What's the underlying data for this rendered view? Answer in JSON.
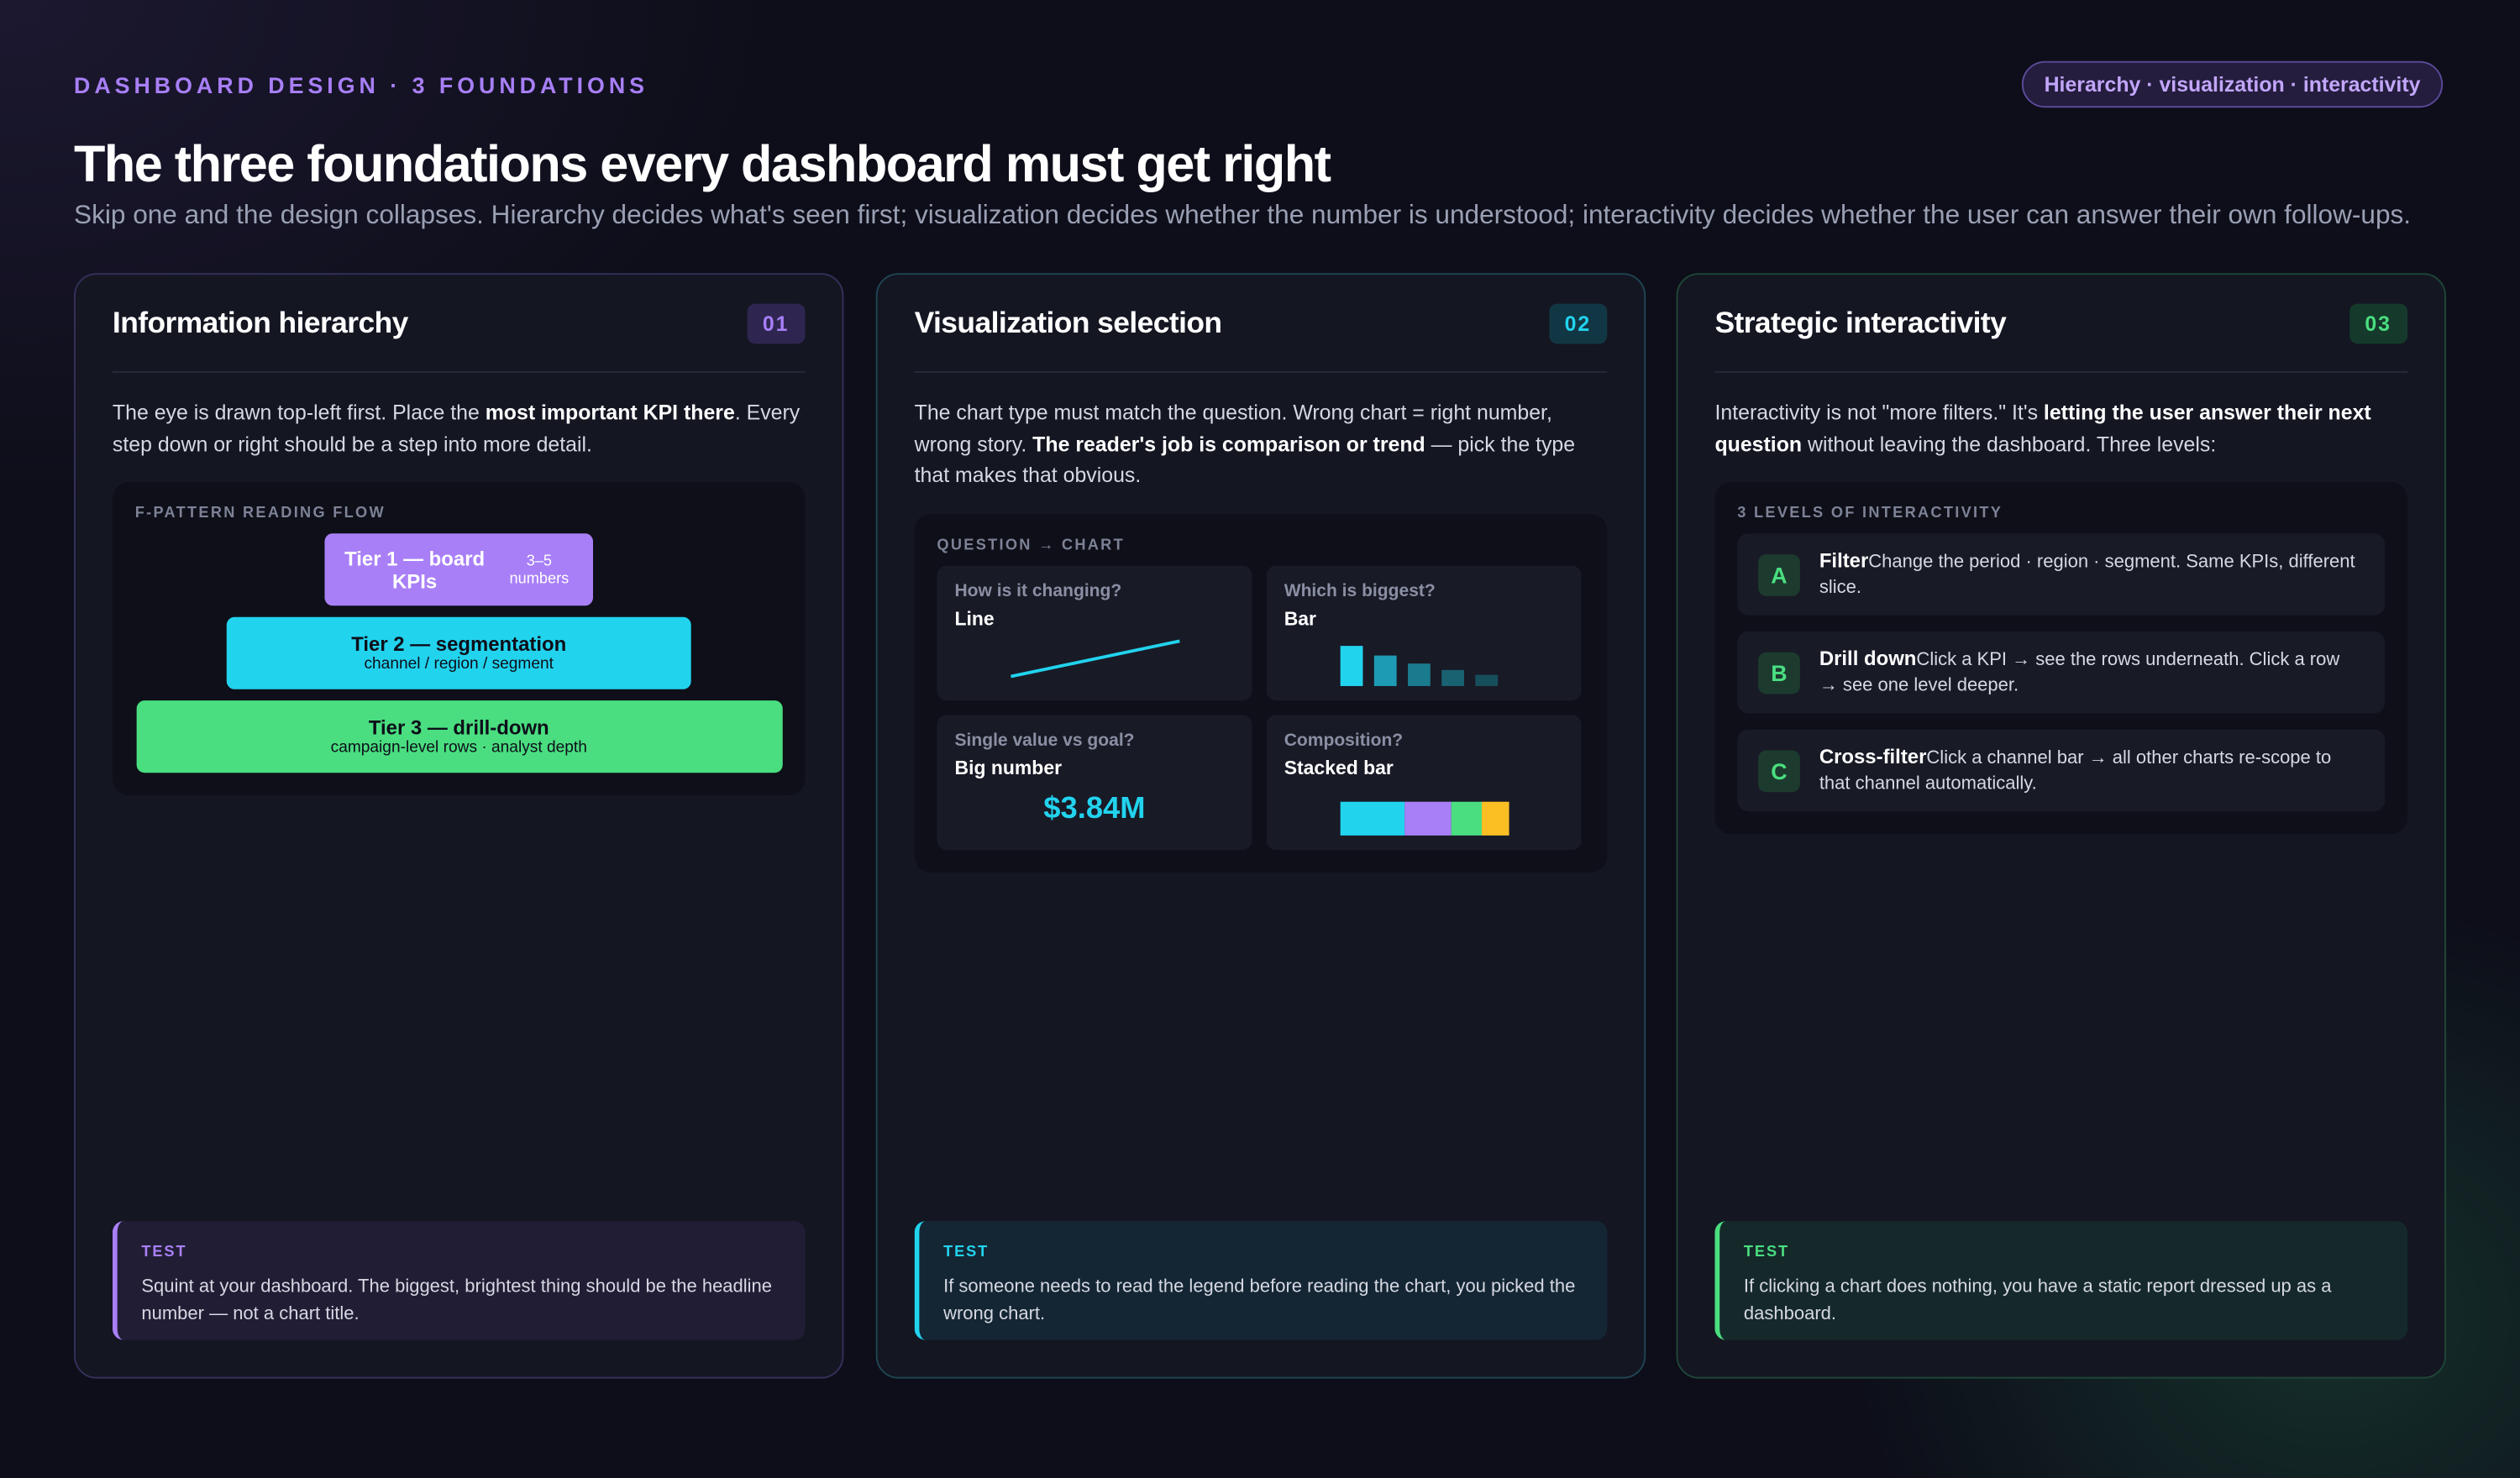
{
  "header": {
    "eyebrow": "DASHBOARD DESIGN · 3 FOUNDATIONS",
    "badge": "Hierarchy · visualization · interactivity",
    "title": "The three foundations every dashboard must get right",
    "subtitle": "Skip one and the design collapses. Hierarchy decides what's seen first; visualization decides whether the number is understood; interactivity decides whether the user can answer their own follow-ups."
  },
  "cards": [
    {
      "title": "Information hierarchy",
      "number": "01",
      "intro": [
        "The eye is drawn top-left first. Place the ",
        "most important KPI there",
        ". Every step down or right should be a step into more detail."
      ],
      "panel_label": "F-PATTERN READING FLOW",
      "tiers": [
        {
          "title": "Tier 1 — board KPIs",
          "note": "3–5 numbers"
        },
        {
          "title": "Tier 2 — segmentation",
          "note": "channel / region / segment"
        },
        {
          "title": "Tier 3 — drill-down",
          "note": "campaign-level rows · analyst depth"
        }
      ],
      "test_label": "TEST",
      "test": "Squint at your dashboard. The biggest, brightest thing should be the headline number — not a chart title."
    },
    {
      "title": "Visualization selection",
      "number": "02",
      "intro": [
        "The chart type must match the question. Wrong chart = right number, wrong story. ",
        "The reader's job is comparison or trend",
        " — pick the type that makes that obvious."
      ],
      "panel_label": "QUESTION → CHART",
      "examples": [
        {
          "question": "How is it changing?",
          "chart": "Line"
        },
        {
          "question": "Which is biggest?",
          "chart": "Bar"
        },
        {
          "question": "Single value vs goal?",
          "chart": "Big number",
          "value": "$3.84M"
        },
        {
          "question": "Composition?",
          "chart": "Stacked bar"
        }
      ],
      "test_label": "TEST",
      "test": "If someone needs to read the legend before reading the chart, you picked the wrong chart."
    },
    {
      "title": "Strategic interactivity",
      "number": "03",
      "intro": [
        "Interactivity is not \"more filters.\" It's ",
        "letting the user answer their next question",
        " without leaving the dashboard. Three levels:"
      ],
      "panel_label": "3 LEVELS OF INTERACTIVITY",
      "levels": [
        {
          "key": "A",
          "name": "Filter",
          "desc": "Change the period · region · segment. Same KPIs, different slice."
        },
        {
          "key": "B",
          "name": "Drill down",
          "desc": "Click a KPI → see the rows underneath. Click a row → see one level deeper."
        },
        {
          "key": "C",
          "name": "Cross-filter",
          "desc": "Click a channel bar → all other charts re-scope to that channel automatically."
        }
      ],
      "test_label": "TEST",
      "test": "If clicking a chart does nothing, you have a static report dressed up as a dashboard."
    }
  ]
}
